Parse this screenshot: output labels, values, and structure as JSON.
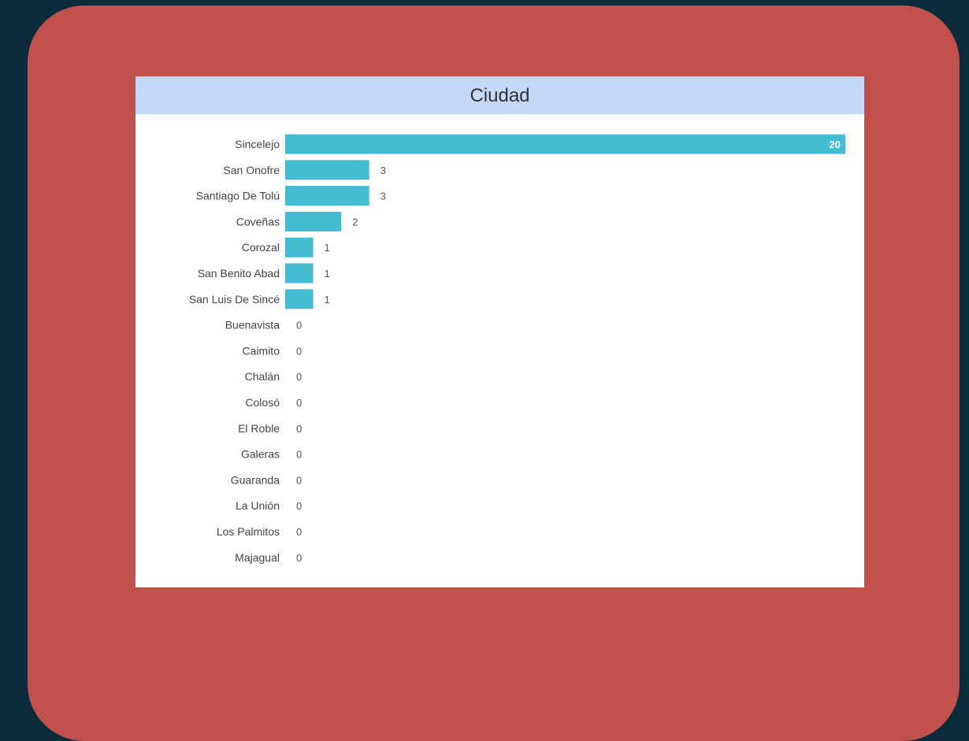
{
  "colors": {
    "background": "#0b2a3a",
    "panel": "#c0514d",
    "header": "#c5d8f5",
    "bar": "#45bcd2"
  },
  "chart_data": {
    "type": "bar",
    "orientation": "horizontal",
    "title": "Ciudad",
    "categories": [
      "Sincelejo",
      "San Onofre",
      "Santiago De Tolú",
      "Coveñas",
      "Corozal",
      "San Benito Abad",
      "San Luis De Sincé",
      "Buenavista",
      "Caimito",
      "Chalán",
      "Colosó",
      "El Roble",
      "Galeras",
      "Guaranda",
      "La Unión",
      "Los Palmitos",
      "Majagual"
    ],
    "values": [
      20,
      3,
      3,
      2,
      1,
      1,
      1,
      0,
      0,
      0,
      0,
      0,
      0,
      0,
      0,
      0,
      0
    ],
    "xlim": [
      0,
      20
    ],
    "grid": false
  }
}
